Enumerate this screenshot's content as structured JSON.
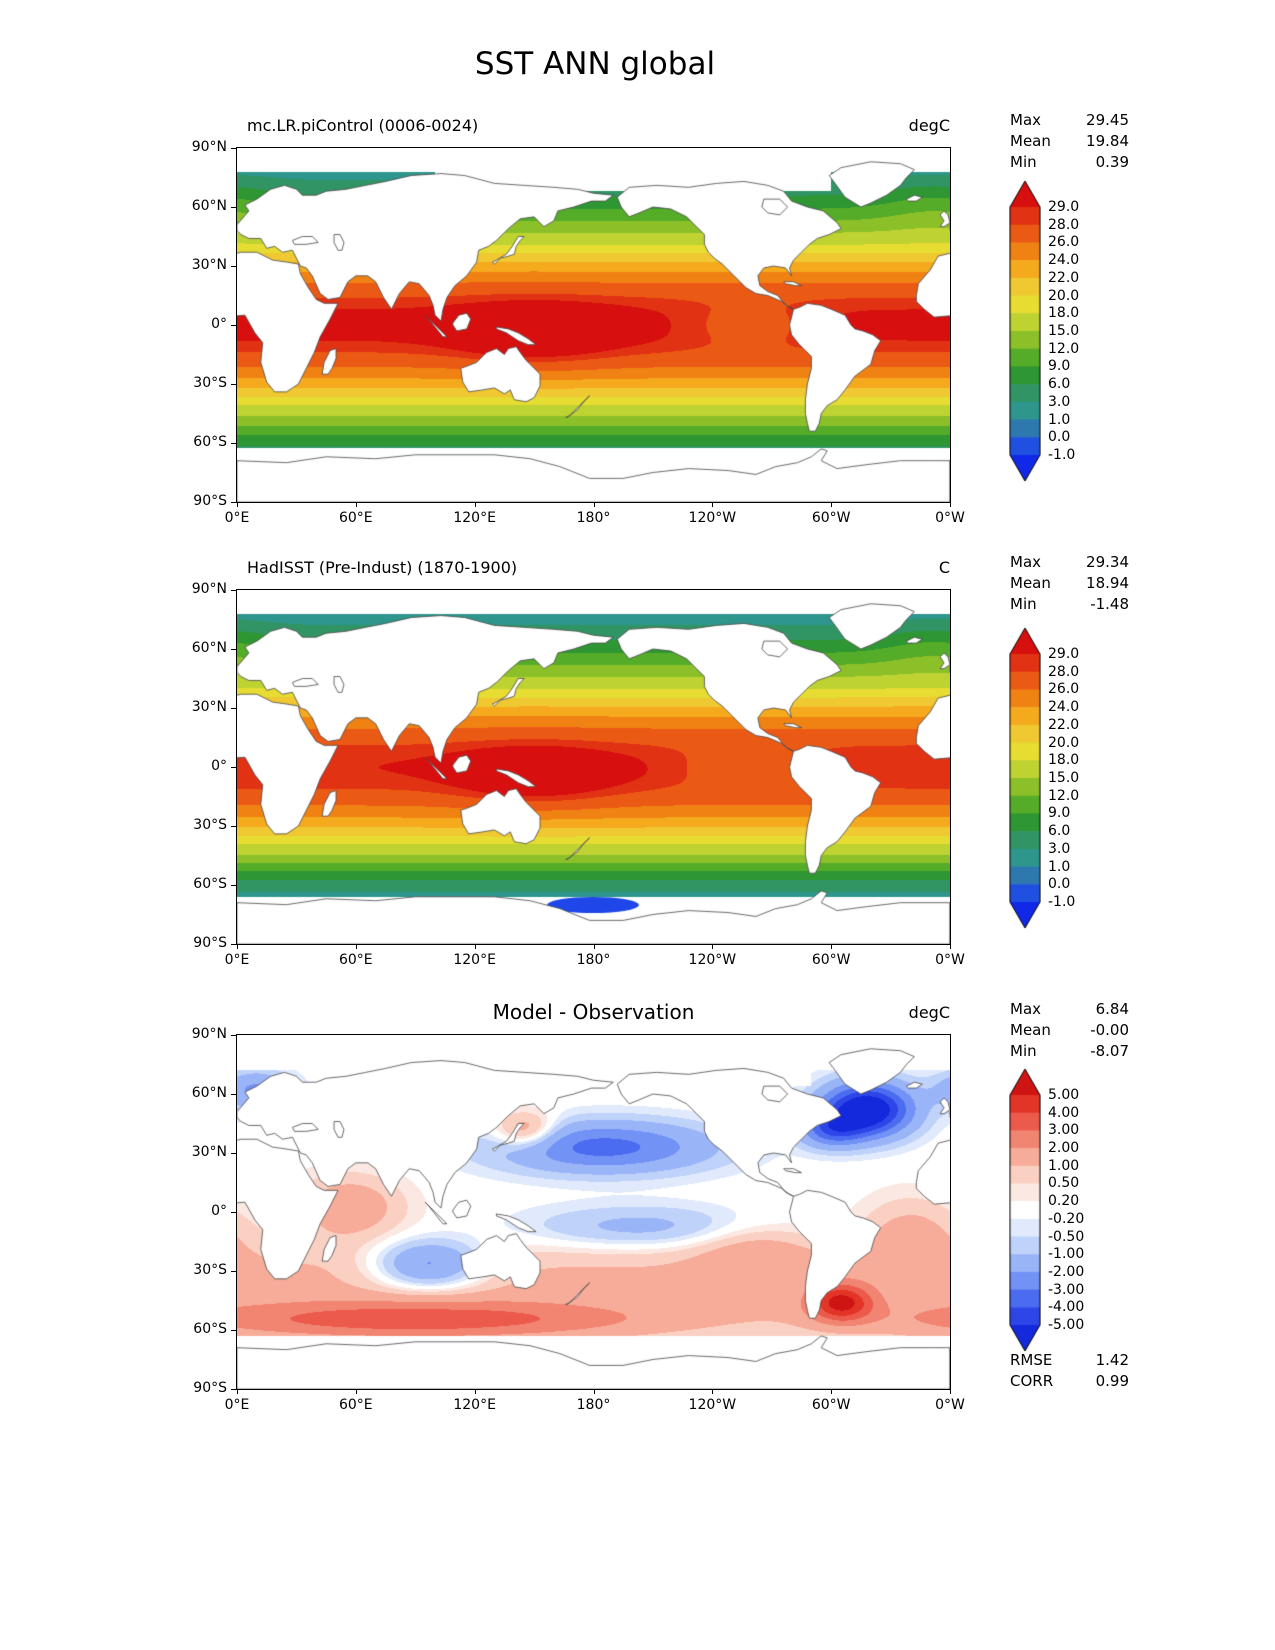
{
  "chart_data": {
    "type": "heatmap",
    "title": "SST ANN global",
    "projection": "global lon-lat, 0E to 0W (360), 90N to 90S",
    "xticks": [
      "0°E",
      "60°E",
      "120°E",
      "180°",
      "120°W",
      "60°W",
      "0°W"
    ],
    "yticks": [
      "90°N",
      "60°N",
      "30°N",
      "0°",
      "30°S",
      "60°S",
      "90°S"
    ],
    "panels": [
      {
        "title": "mc.LR.piControl (0006-0024)",
        "units": "degC",
        "map": "annual mean SST filled contours, model",
        "stats": [
          {
            "label": "Max",
            "value": "29.45"
          },
          {
            "label": "Mean",
            "value": "19.84"
          },
          {
            "label": "Min",
            "value": "0.39"
          }
        ],
        "colorbar": {
          "levels": [
            -1.0,
            0.0,
            1.0,
            3.0,
            6.0,
            9.0,
            12.0,
            15.0,
            18.0,
            20.0,
            22.0,
            24.0,
            26.0,
            28.0,
            29.0
          ],
          "tick_labels_top_to_bottom": [
            "29.0",
            "28.0",
            "26.0",
            "24.0",
            "22.0",
            "20.0",
            "18.0",
            "15.0",
            "12.0",
            "9.0",
            "6.0",
            "3.0",
            "1.0",
            "0.0",
            "-1.0"
          ],
          "segment_colors_low_to_high": [
            "#2050E0",
            "#2E78B0",
            "#2E968C",
            "#309464",
            "#2E9632",
            "#55AC28",
            "#8CC028",
            "#BED232",
            "#E6DC32",
            "#F0C832",
            "#F5AA1E",
            "#F08214",
            "#EB5A14",
            "#E13214"
          ],
          "under_color": "#1128E8",
          "over_color": "#D80F0F"
        }
      },
      {
        "title": "HadISST (Pre-Indust) (1870-1900)",
        "units": "C",
        "map": "annual mean SST filled contours, observation",
        "stats": [
          {
            "label": "Max",
            "value": "29.34"
          },
          {
            "label": "Mean",
            "value": "18.94"
          },
          {
            "label": "Min",
            "value": "-1.48"
          }
        ],
        "colorbar": {
          "levels": [
            -1.0,
            0.0,
            1.0,
            3.0,
            6.0,
            9.0,
            12.0,
            15.0,
            18.0,
            20.0,
            22.0,
            24.0,
            26.0,
            28.0,
            29.0
          ],
          "tick_labels_top_to_bottom": [
            "29.0",
            "28.0",
            "26.0",
            "24.0",
            "22.0",
            "20.0",
            "18.0",
            "15.0",
            "12.0",
            "9.0",
            "6.0",
            "3.0",
            "1.0",
            "0.0",
            "-1.0"
          ],
          "segment_colors_low_to_high": [
            "#2050E0",
            "#2E78B0",
            "#2E968C",
            "#309464",
            "#2E9632",
            "#55AC28",
            "#8CC028",
            "#BED232",
            "#E6DC32",
            "#F0C832",
            "#F5AA1E",
            "#F08214",
            "#EB5A14",
            "#E13214"
          ],
          "under_color": "#1128E8",
          "over_color": "#D80F0F"
        }
      },
      {
        "title": "Model - Observation",
        "units": "degC",
        "map": "SST bias (model minus observation) filled contours",
        "stats": [
          {
            "label": "Max",
            "value": "6.84"
          },
          {
            "label": "Mean",
            "value": "-0.00"
          },
          {
            "label": "Min",
            "value": "-8.07"
          }
        ],
        "colorbar": {
          "levels": [
            -5.0,
            -4.0,
            -3.0,
            -2.0,
            -1.0,
            -0.5,
            -0.2,
            0.2,
            0.5,
            1.0,
            2.0,
            3.0,
            4.0,
            5.0
          ],
          "tick_labels_top_to_bottom": [
            "5.00",
            "4.00",
            "3.00",
            "2.00",
            "1.00",
            "0.50",
            "0.20",
            "-0.20",
            "-0.50",
            "-1.00",
            "-2.00",
            "-3.00",
            "-4.00",
            "-5.00"
          ],
          "segment_colors_low_to_high": [
            "#2E46E8",
            "#4B6BF0",
            "#7292F5",
            "#9AB4F8",
            "#BFD2FA",
            "#E0EAFC",
            "#FFFFFF",
            "#FCE8E2",
            "#FAD0C3",
            "#F7AC99",
            "#F28472",
            "#EC5A4B",
            "#E23528"
          ],
          "under_color": "#1428DC",
          "over_color": "#CF1414"
        },
        "extra_stats": [
          {
            "label": "RMSE",
            "value": "1.42"
          },
          {
            "label": "CORR",
            "value": "0.99"
          }
        ]
      }
    ]
  }
}
